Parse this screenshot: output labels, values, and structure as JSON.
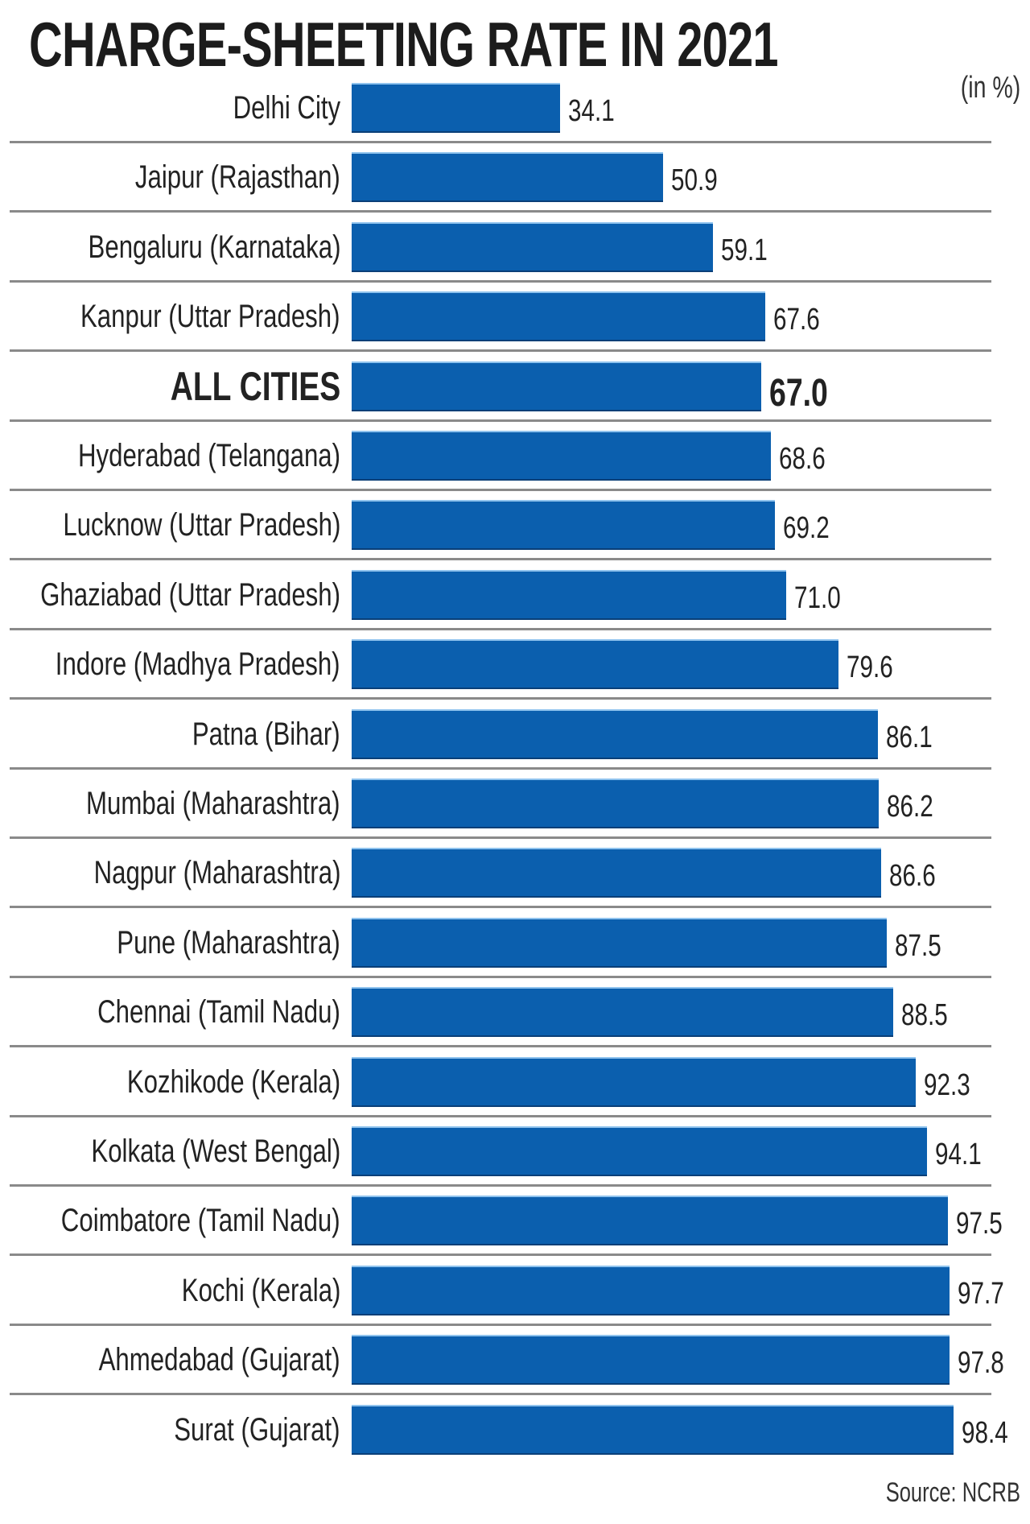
{
  "chart_data": {
    "type": "bar",
    "orientation": "horizontal",
    "title": "CHARGE-SHEETING RATE IN 2021",
    "unit_label": "(in %)",
    "source": "Source: NCRB",
    "xlabel": "",
    "ylabel": "",
    "xlim": [
      0,
      100
    ],
    "grid": false,
    "bar_color": "#0b5fae",
    "categories": [
      "Delhi City",
      "Jaipur (Rajasthan)",
      "Bengaluru (Karnataka)",
      "Kanpur (Uttar Pradesh)",
      "ALL CITIES",
      "Hyderabad (Telangana)",
      "Lucknow (Uttar Pradesh)",
      "Ghaziabad (Uttar Pradesh)",
      "Indore (Madhya Pradesh)",
      "Patna (Bihar)",
      "Mumbai (Maharashtra)",
      "Nagpur (Maharashtra)",
      "Pune (Maharashtra)",
      "Chennai (Tamil Nadu)",
      "Kozhikode (Kerala)",
      "Kolkata (West Bengal)",
      "Coimbatore (Tamil Nadu)",
      "Kochi (Kerala)",
      "Ahmedabad (Gujarat)",
      "Surat (Gujarat)"
    ],
    "values": [
      34.1,
      50.9,
      59.1,
      67.6,
      67.0,
      68.6,
      69.2,
      71.0,
      79.6,
      86.1,
      86.2,
      86.6,
      87.5,
      88.5,
      92.3,
      94.1,
      97.5,
      97.7,
      97.8,
      98.4
    ],
    "value_labels": [
      "34.1",
      "50.9",
      "59.1",
      "67.6",
      "67.0",
      "68.6",
      "69.2",
      "71.0",
      "79.6",
      "86.1",
      "86.2",
      "86.6",
      "87.5",
      "88.5",
      "92.3",
      "94.1",
      "97.5",
      "97.7",
      "97.8",
      "98.4"
    ],
    "highlight": "ALL CITIES"
  }
}
